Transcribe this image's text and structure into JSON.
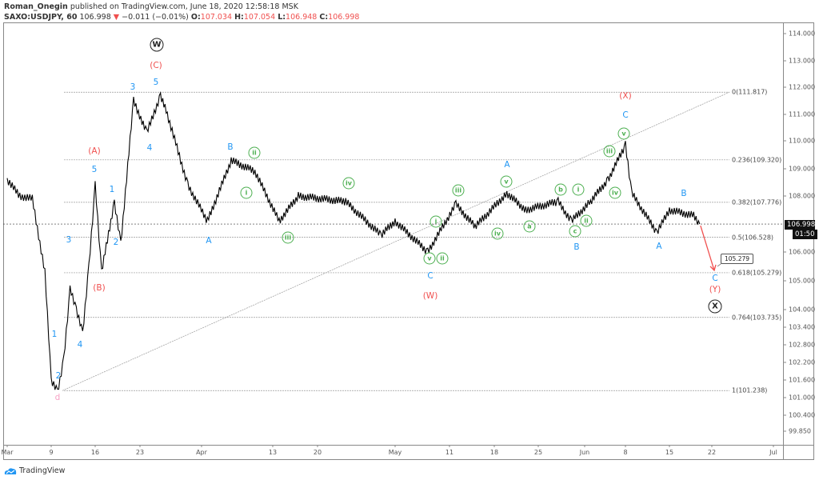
{
  "header": {
    "author": "Roman_Onegin",
    "published": "published on TradingView.com, June 18, 2020 12:58:18 MSK",
    "symbol": "SAXO:USDJPY, 60",
    "last": "106.998",
    "change": "−0.011 (−0.01%)",
    "o_label": "O:",
    "o": "107.034",
    "h_label": "H:",
    "h": "107.054",
    "l_label": "L:",
    "l": "106.948",
    "c_label": "C:",
    "c": "106.998",
    "down_icon": "triangle-down-icon"
  },
  "chart_data": {
    "type": "line",
    "title": "",
    "y_scale": "log",
    "ylim": [
      99.6,
      114.5
    ],
    "y_ticks": [
      "114.000",
      "113.000",
      "112.000",
      "111.000",
      "110.000",
      "109.000",
      "108.000",
      "106.000",
      "105.000",
      "104.000",
      "103.400",
      "102.800",
      "102.200",
      "101.600",
      "101.000",
      "100.400",
      "99.850"
    ],
    "x_ticks": [
      "Mar",
      "9",
      "16",
      "23",
      "Apr",
      "13",
      "20",
      "May",
      "11",
      "18",
      "25",
      "Jun",
      "8",
      "15",
      "22",
      "Jul"
    ],
    "series": [
      {
        "color": "#000000",
        "points": [
          [
            "2020-03-02",
            108.6
          ],
          [
            "2020-03-04",
            108.0
          ],
          [
            "2020-03-06",
            107.9
          ],
          [
            "2020-03-08",
            105.3
          ],
          [
            "2020-03-09",
            101.6
          ],
          [
            "2020-03-10",
            101.2
          ],
          [
            "2020-03-11",
            102.3
          ],
          [
            "2020-03-12",
            104.7
          ],
          [
            "2020-03-13",
            104.0
          ],
          [
            "2020-03-14",
            103.2
          ],
          [
            "2020-03-15",
            105.5
          ],
          [
            "2020-03-16",
            108.4
          ],
          [
            "2020-03-17",
            105.3
          ],
          [
            "2020-03-19",
            107.8
          ],
          [
            "2020-03-20",
            106.3
          ],
          [
            "2020-03-22",
            111.5
          ],
          [
            "2020-03-24",
            110.3
          ],
          [
            "2020-03-26",
            111.7
          ],
          [
            "2020-03-27",
            111.0
          ],
          [
            "2020-03-30",
            108.4
          ],
          [
            "2020-04-02",
            107.1
          ],
          [
            "2020-04-06",
            109.3
          ],
          [
            "2020-04-10",
            108.9
          ],
          [
            "2020-04-14",
            107.1
          ],
          [
            "2020-04-17",
            108.0
          ],
          [
            "2020-04-24",
            107.8
          ],
          [
            "2020-04-29",
            106.6
          ],
          [
            "2020-05-01",
            107.1
          ],
          [
            "2020-05-07",
            106.0
          ],
          [
            "2020-05-12",
            107.7
          ],
          [
            "2020-05-15",
            106.9
          ],
          [
            "2020-05-20",
            108.1
          ],
          [
            "2020-05-23",
            107.5
          ],
          [
            "2020-05-28",
            107.8
          ],
          [
            "2020-05-30",
            107.1
          ],
          [
            "2020-06-02",
            107.8
          ],
          [
            "2020-06-05",
            108.6
          ],
          [
            "2020-06-08",
            109.85
          ],
          [
            "2020-06-09",
            108.1
          ],
          [
            "2020-06-13",
            106.7
          ],
          [
            "2020-06-15",
            107.5
          ],
          [
            "2020-06-19",
            107.3
          ],
          [
            "2020-06-20",
            106.998
          ]
        ]
      }
    ],
    "fib_levels": [
      {
        "label": "0(111.817)",
        "value": 111.817
      },
      {
        "label": "0.236(109.320)",
        "value": 109.32
      },
      {
        "label": "0.382(107.776)",
        "value": 107.776
      },
      {
        "label": "0.5(106.528)",
        "value": 106.528
      },
      {
        "label": "0.618(105.279)",
        "value": 105.279
      },
      {
        "label": "0.764(103.735)",
        "value": 103.735
      },
      {
        "label": "1(101.238)",
        "value": 101.238
      }
    ],
    "current_price": "106.998",
    "countdown": "01:50",
    "target_callout": "105.279",
    "wave_labels": [
      "1",
      "2",
      "3",
      "4",
      "5",
      "1",
      "2",
      "3",
      "4",
      "5",
      "A",
      "B",
      "A",
      "B",
      "C",
      "A",
      "B",
      "C",
      "C",
      "(A)",
      "(B)",
      "(C)",
      "(W)",
      "(X)",
      "(Y)",
      "d",
      "W",
      "X",
      "ii",
      "i",
      "iii",
      "iv",
      "i",
      "v",
      "ii",
      "iii",
      "v",
      "iv",
      "a",
      "b",
      "i",
      "c",
      "ii",
      "iii",
      "v",
      "iv"
    ],
    "colors": {
      "blue": "#2196f3",
      "red": "#f0504f",
      "green": "#4caf50",
      "pink": "#f7a1c4",
      "arrow": "#f0504f"
    }
  },
  "footer": {
    "brand": "TradingView"
  }
}
